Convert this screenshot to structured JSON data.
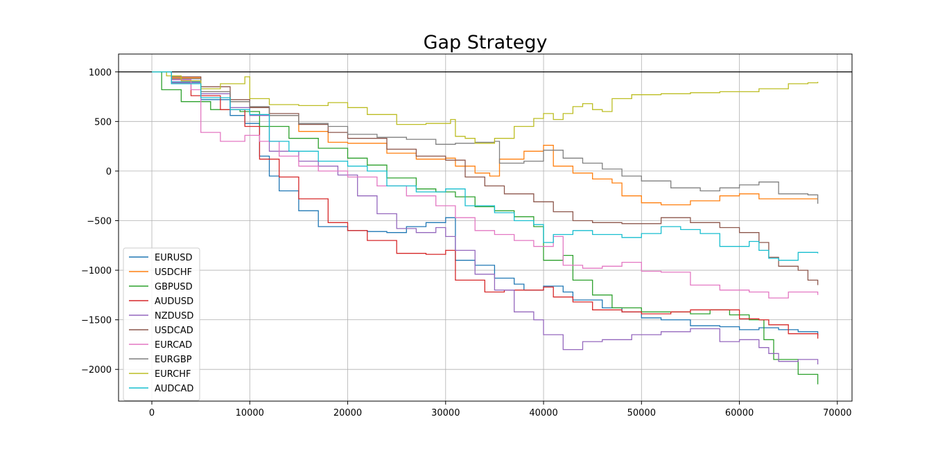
{
  "chart_data": {
    "type": "line",
    "title": "Gap Strategy",
    "xlabel": "",
    "ylabel": "",
    "xlim": [
      -3400,
      71500
    ],
    "ylim": [
      -2320,
      1180
    ],
    "xticks": [
      0,
      10000,
      20000,
      30000,
      40000,
      50000,
      60000,
      70000
    ],
    "yticks": [
      -2000,
      -1500,
      -1000,
      -500,
      0,
      500,
      1000
    ],
    "grid": true,
    "reference_line": 1000,
    "legend": "bottom-left",
    "series": [
      {
        "name": "EURUSD",
        "color": "#1f77b4",
        "x": [
          0,
          2000,
          5000,
          8000,
          9500,
          11000,
          12000,
          13000,
          15000,
          17000,
          20000,
          22000,
          24000,
          26000,
          28000,
          30000,
          31000,
          33000,
          35000,
          37000,
          38000,
          40000,
          42000,
          43000,
          46000,
          48000,
          50000,
          52000,
          55000,
          58000,
          60000,
          62000,
          64000,
          66000,
          68000
        ],
        "y": [
          1000,
          900,
          720,
          560,
          480,
          150,
          -50,
          -200,
          -400,
          -560,
          -600,
          -610,
          -620,
          -560,
          -520,
          -470,
          -900,
          -950,
          -1080,
          -1140,
          -1200,
          -1160,
          -1220,
          -1300,
          -1380,
          -1420,
          -1480,
          -1500,
          -1560,
          -1570,
          -1600,
          -1580,
          -1600,
          -1620,
          -1660
        ]
      },
      {
        "name": "USDCHF",
        "color": "#ff7f0e",
        "x": [
          0,
          2000,
          5000,
          8000,
          10000,
          12000,
          15000,
          18000,
          20000,
          24000,
          27000,
          30000,
          31000,
          33000,
          34500,
          35500,
          38000,
          40000,
          41000,
          43000,
          45000,
          47000,
          48000,
          50000,
          52000,
          55000,
          58000,
          60000,
          62000,
          65000,
          68000
        ],
        "y": [
          1000,
          940,
          800,
          700,
          640,
          560,
          400,
          290,
          280,
          180,
          120,
          130,
          50,
          -20,
          -50,
          120,
          200,
          260,
          50,
          -20,
          -80,
          -120,
          -250,
          -320,
          -340,
          -300,
          -250,
          -230,
          -280,
          -280,
          -280
        ]
      },
      {
        "name": "GBPUSD",
        "color": "#2ca02c",
        "x": [
          0,
          1000,
          3000,
          6000,
          9000,
          11000,
          14000,
          17000,
          20000,
          22000,
          24000,
          27000,
          29000,
          31000,
          33000,
          35000,
          37000,
          39000,
          40000,
          42000,
          43000,
          45000,
          47000,
          50000,
          52000,
          55000,
          57000,
          59000,
          61000,
          62500,
          63500,
          66000,
          68000
        ],
        "y": [
          1000,
          820,
          700,
          620,
          600,
          450,
          330,
          230,
          130,
          60,
          -70,
          -180,
          -210,
          -260,
          -360,
          -400,
          -460,
          -560,
          -900,
          -850,
          -1100,
          -1250,
          -1380,
          -1420,
          -1420,
          -1440,
          -1400,
          -1450,
          -1500,
          -1700,
          -1900,
          -2050,
          -2150
        ]
      },
      {
        "name": "AUDUSD",
        "color": "#d62728",
        "x": [
          0,
          2000,
          4000,
          7000,
          9500,
          11000,
          13000,
          15000,
          18000,
          20000,
          22000,
          25000,
          28000,
          30000,
          31000,
          34000,
          36000,
          38000,
          40000,
          41000,
          43000,
          45000,
          48000,
          50000,
          53000,
          55000,
          57000,
          60000,
          62000,
          63000,
          65000,
          68000
        ],
        "y": [
          1000,
          880,
          760,
          620,
          450,
          120,
          -60,
          -280,
          -520,
          -600,
          -700,
          -830,
          -840,
          -800,
          -1100,
          -1220,
          -1200,
          -1200,
          -1170,
          -1270,
          -1320,
          -1400,
          -1420,
          -1440,
          -1420,
          -1400,
          -1400,
          -1490,
          -1500,
          -1550,
          -1640,
          -1690
        ]
      },
      {
        "name": "NZDUSD",
        "color": "#9467bd",
        "x": [
          0,
          2000,
          5000,
          8000,
          10000,
          12000,
          15000,
          17000,
          19000,
          21000,
          23000,
          25000,
          27000,
          29000,
          30000,
          31000,
          33000,
          35000,
          37000,
          39000,
          40000,
          42000,
          44000,
          46000,
          49000,
          52000,
          55000,
          58000,
          60000,
          62000,
          63000,
          64000,
          66000,
          68000
        ],
        "y": [
          1000,
          890,
          780,
          640,
          560,
          200,
          100,
          50,
          -40,
          -250,
          -430,
          -580,
          -620,
          -570,
          -660,
          -800,
          -1040,
          -1200,
          -1420,
          -1500,
          -1650,
          -1800,
          -1720,
          -1700,
          -1650,
          -1620,
          -1590,
          -1720,
          -1700,
          -1780,
          -1840,
          -1920,
          -1900,
          -1950
        ]
      },
      {
        "name": "USDCAD",
        "color": "#8c564b",
        "x": [
          0,
          2000,
          5000,
          8000,
          10000,
          12000,
          15000,
          18000,
          20000,
          24000,
          27000,
          30000,
          32000,
          34000,
          36000,
          39000,
          41000,
          43000,
          45000,
          48000,
          52000,
          55000,
          58000,
          60000,
          62000,
          63000,
          64000,
          66000,
          67000,
          68000
        ],
        "y": [
          1000,
          950,
          850,
          720,
          640,
          580,
          470,
          390,
          330,
          220,
          150,
          110,
          -60,
          -150,
          -230,
          -310,
          -410,
          -500,
          -520,
          -530,
          -470,
          -520,
          -570,
          -620,
          -720,
          -870,
          -960,
          -1000,
          -1100,
          -1150
        ]
      },
      {
        "name": "EURCAD",
        "color": "#e377c2",
        "x": [
          0,
          2000,
          4000,
          5000,
          7000,
          9500,
          11000,
          13000,
          15000,
          17000,
          20000,
          23000,
          26000,
          29000,
          31000,
          33000,
          35000,
          37000,
          39000,
          40000,
          41000,
          42000,
          44000,
          46000,
          48000,
          50000,
          52000,
          55000,
          58000,
          61000,
          63000,
          65000,
          68000
        ],
        "y": [
          1000,
          920,
          820,
          390,
          300,
          360,
          300,
          150,
          50,
          0,
          -60,
          -150,
          -250,
          -350,
          -470,
          -600,
          -640,
          -700,
          -760,
          -760,
          -660,
          -950,
          -980,
          -960,
          -920,
          -1010,
          -1020,
          -1150,
          -1200,
          -1220,
          -1280,
          -1220,
          -1250
        ]
      },
      {
        "name": "EURGBP",
        "color": "#7f7f7f",
        "x": [
          0,
          2000,
          5000,
          8000,
          10000,
          12000,
          15000,
          18000,
          20000,
          23000,
          26000,
          29000,
          31000,
          33000,
          35000,
          35500,
          38000,
          40000,
          42000,
          44000,
          46000,
          48000,
          50000,
          53000,
          56000,
          58000,
          60000,
          62000,
          64000,
          67000,
          68000
        ],
        "y": [
          1000,
          930,
          800,
          700,
          650,
          560,
          480,
          450,
          370,
          340,
          320,
          270,
          280,
          290,
          300,
          80,
          100,
          210,
          130,
          80,
          20,
          -50,
          -100,
          -170,
          -200,
          -170,
          -140,
          -110,
          -230,
          -240,
          -330
        ]
      },
      {
        "name": "EURCHF",
        "color": "#bcbd22",
        "x": [
          0,
          1500,
          3000,
          5000,
          7000,
          9500,
          10000,
          12000,
          15000,
          18000,
          20000,
          22000,
          25000,
          28000,
          30500,
          31000,
          32000,
          33000,
          35000,
          37000,
          39000,
          40000,
          41000,
          42000,
          43000,
          44000,
          45000,
          46000,
          47000,
          49000,
          52000,
          55000,
          58000,
          62000,
          65000,
          67000,
          68000
        ],
        "y": [
          1000,
          960,
          910,
          830,
          880,
          950,
          730,
          670,
          660,
          690,
          640,
          570,
          470,
          480,
          520,
          350,
          330,
          280,
          330,
          450,
          530,
          580,
          520,
          580,
          650,
          680,
          620,
          600,
          730,
          770,
          780,
          790,
          800,
          830,
          880,
          890,
          900
        ]
      },
      {
        "name": "AUDCAD",
        "color": "#17becf",
        "x": [
          0,
          2000,
          5000,
          8000,
          10000,
          12000,
          14000,
          17000,
          20000,
          22000,
          24000,
          27000,
          30000,
          32000,
          35000,
          37000,
          39000,
          40000,
          41000,
          43000,
          45000,
          48000,
          50000,
          52000,
          54000,
          56000,
          58000,
          60000,
          61000,
          62000,
          63000,
          64000,
          66000,
          68000
        ],
        "y": [
          1000,
          880,
          740,
          620,
          570,
          300,
          200,
          100,
          50,
          0,
          -150,
          -210,
          -180,
          -350,
          -420,
          -500,
          -540,
          -720,
          -640,
          -600,
          -640,
          -670,
          -630,
          -560,
          -590,
          -630,
          -760,
          -760,
          -710,
          -800,
          -880,
          -900,
          -820,
          -830
        ]
      }
    ]
  }
}
